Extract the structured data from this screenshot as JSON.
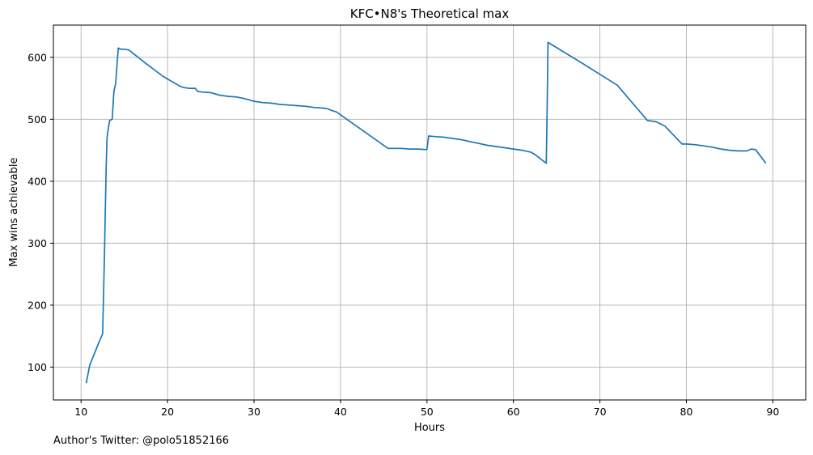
{
  "chart_data": {
    "type": "line",
    "title": "KFC•N8's Theoretical max",
    "xlabel": "Hours",
    "ylabel": "Max wins achievable",
    "xlim": [
      6.8,
      93.8
    ],
    "ylim": [
      47,
      652
    ],
    "xticks": [
      10,
      20,
      30,
      40,
      50,
      60,
      70,
      80,
      90
    ],
    "yticks": [
      100,
      200,
      300,
      400,
      500,
      600
    ],
    "grid": true,
    "series_color": "#1f77b4",
    "series": [
      {
        "x": [
          10.6,
          11.0,
          11.5,
          12.0,
          12.5,
          12.7,
          12.9,
          13.0,
          13.1,
          13.3,
          13.6,
          13.8,
          14.0,
          14.3,
          14.6,
          15.0,
          15.5,
          17.5,
          19.5,
          21.5,
          22.0,
          22.5,
          23.2,
          23.5,
          24.0,
          25.0,
          26.0,
          27.0,
          28.0,
          29.0,
          30.0,
          31.0,
          32.0,
          33.0,
          34.0,
          35.0,
          36.0,
          37.0,
          38.0,
          38.5,
          39.0,
          39.5,
          45.5,
          46.0,
          47.0,
          48.0,
          49.0,
          49.9,
          50.0,
          50.2,
          51.0,
          52.0,
          53.0,
          54.0,
          55.0,
          56.0,
          57.0,
          58.0,
          59.0,
          60.0,
          61.0,
          62.0,
          62.5,
          63.8,
          63.9,
          64.0,
          68.0,
          72.0,
          75.5,
          76.5,
          77.5,
          79.5,
          80.0,
          81.0,
          82.0,
          83.0,
          84.0,
          85.0,
          86.0,
          87.0,
          87.5,
          88.0,
          89.2
        ],
        "y": [
          74,
          103,
          120,
          138,
          154,
          280,
          420,
          470,
          480,
          498,
          500,
          545,
          558,
          615,
          613,
          613,
          612,
          590,
          569,
          553,
          551,
          550,
          550,
          545,
          544,
          543,
          539,
          537,
          536,
          533,
          529,
          527,
          526,
          524,
          523,
          522,
          521,
          519,
          518,
          517,
          514,
          512,
          453,
          453,
          453,
          452,
          452,
          451,
          452,
          473,
          472,
          471,
          469,
          467,
          464,
          461,
          458,
          456,
          454,
          452,
          450,
          447,
          443,
          429,
          520,
          624,
          590,
          555,
          498,
          496,
          489,
          460,
          460,
          459,
          457,
          455,
          452,
          450,
          449,
          449,
          452,
          451,
          429
        ]
      }
    ]
  },
  "footnote": "Author's Twitter: @polo51852166"
}
